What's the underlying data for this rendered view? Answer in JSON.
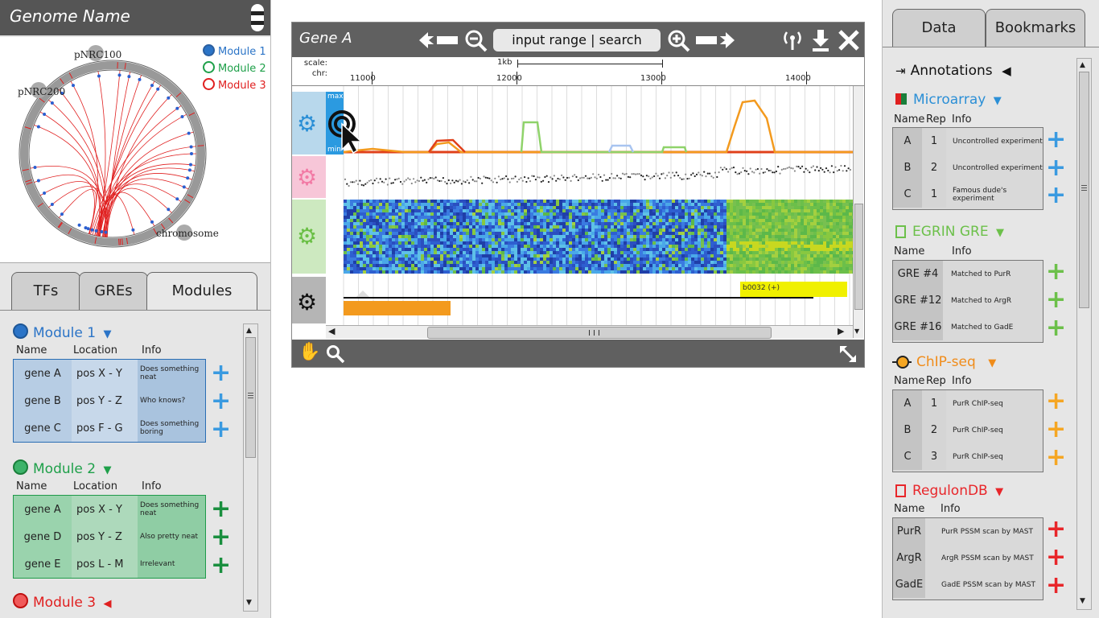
{
  "left": {
    "genome_title": "Genome Name",
    "circos": {
      "labels": [
        "pNRC100",
        "pNRC200",
        "chromosome"
      ],
      "legend": [
        {
          "label": "Module 1",
          "color": "#2b74c7"
        },
        {
          "label": "Module 2",
          "color": "#1fa04a"
        },
        {
          "label": "Module 3",
          "color": "#e02020"
        }
      ]
    },
    "tabs": [
      "TFs",
      "GREs",
      "Modules"
    ],
    "modules": [
      {
        "title": "Module 1",
        "color": "#2b74c7",
        "headers": [
          "Name",
          "Location",
          "Info"
        ],
        "rows": [
          {
            "name": "gene A",
            "location": "pos X - Y",
            "info": "Does something neat"
          },
          {
            "name": "gene B",
            "location": "pos Y - Z",
            "info": "Who knows?"
          },
          {
            "name": "gene C",
            "location": "pos F - G",
            "info": "Does something boring"
          }
        ]
      },
      {
        "title": "Module 2",
        "color": "#1fa04a",
        "headers": [
          "Name",
          "Location",
          "Info"
        ],
        "rows": [
          {
            "name": "gene A",
            "location": "pos X - Y",
            "info": "Does something neat"
          },
          {
            "name": "gene D",
            "location": "pos Y - Z",
            "info": "Also pretty neat"
          },
          {
            "name": "gene E",
            "location": "pos L - M",
            "info": "Irrelevant"
          }
        ]
      },
      {
        "title": "Module 3",
        "color": "#e02020"
      }
    ]
  },
  "viewer": {
    "title": "Gene A",
    "search_placeholder": "input range | search",
    "scale_label": "scale:",
    "chr_label": "chr:",
    "scale_value": "1kb",
    "ticks": [
      "11000",
      "12000",
      "13000",
      "14000"
    ],
    "max_label": "max",
    "min_label": "min",
    "feature_label": "b0032 (+)",
    "icons": [
      "back-arrow",
      "zoom-out",
      "zoom-in",
      "forward-arrow",
      "signal",
      "download",
      "close",
      "hand",
      "magnifier",
      "expand"
    ]
  },
  "right": {
    "tabs": [
      "Data",
      "Bookmarks"
    ],
    "annotations_title": "Annotations",
    "sections": [
      {
        "title": "Microarray",
        "color": "#2b8fd6",
        "headers": [
          "Name",
          "Rep",
          "Info"
        ],
        "rows": [
          {
            "name": "A",
            "rep": "1",
            "info": "Uncontrolled experiment"
          },
          {
            "name": "B",
            "rep": "2",
            "info": "Uncontrolled experiment"
          },
          {
            "name": "C",
            "rep": "1",
            "info": "Famous dude's experiment"
          }
        ]
      },
      {
        "title": "EGRIN GRE",
        "color": "#6cc04a",
        "headers": [
          "Name",
          "Info"
        ],
        "rows": [
          {
            "name": "GRE #4",
            "info": "Matched to PurR"
          },
          {
            "name": "GRE #12",
            "info": "Matched to ArgR"
          },
          {
            "name": "GRE #16",
            "info": "Matched to GadE"
          }
        ]
      },
      {
        "title": "ChIP-seq",
        "color": "#f08c1a",
        "headers": [
          "Name",
          "Rep",
          "Info"
        ],
        "rows": [
          {
            "name": "A",
            "rep": "1",
            "info": "PurR ChIP-seq"
          },
          {
            "name": "B",
            "rep": "2",
            "info": "PurR ChIP-seq"
          },
          {
            "name": "C",
            "rep": "3",
            "info": "PurR ChIP-seq"
          }
        ]
      },
      {
        "title": "RegulonDB",
        "color": "#e8262a",
        "headers": [
          "Name",
          "Info"
        ],
        "rows": [
          {
            "name": "PurR",
            "info": "PurR PSSM scan by MAST"
          },
          {
            "name": "ArgR",
            "info": "ArgR PSSM scan by MAST"
          },
          {
            "name": "GadE",
            "info": "GadE PSSM scan by MAST"
          }
        ]
      }
    ]
  }
}
